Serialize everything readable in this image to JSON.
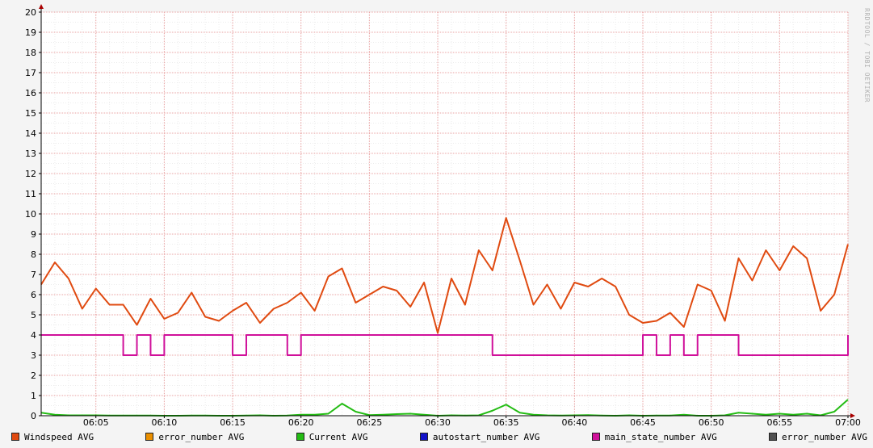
{
  "chart_data": {
    "type": "line",
    "title": "",
    "xlabel": "",
    "ylabel": "",
    "ylim": [
      0,
      20
    ],
    "yticks": [
      0,
      1,
      2,
      3,
      4,
      5,
      6,
      7,
      8,
      9,
      10,
      11,
      12,
      13,
      14,
      15,
      16,
      17,
      18,
      19,
      20
    ],
    "xlim": [
      "06:01",
      "07:00"
    ],
    "xticks": [
      "06:05",
      "06:10",
      "06:15",
      "06:20",
      "06:25",
      "06:30",
      "06:35",
      "06:40",
      "06:45",
      "06:50",
      "06:55",
      "07:00"
    ],
    "grid": true,
    "legend_position": "bottom",
    "watermark": "RRDTOOL / TOBI OETIKER",
    "series": [
      {
        "name": "Windspeed AVG",
        "color": "#e04a10",
        "x": [
          "06:01",
          "06:02",
          "06:03",
          "06:04",
          "06:05",
          "06:06",
          "06:07",
          "06:08",
          "06:09",
          "06:10",
          "06:11",
          "06:12",
          "06:13",
          "06:14",
          "06:15",
          "06:16",
          "06:17",
          "06:18",
          "06:19",
          "06:20",
          "06:21",
          "06:22",
          "06:23",
          "06:24",
          "06:25",
          "06:26",
          "06:27",
          "06:28",
          "06:29",
          "06:30",
          "06:31",
          "06:32",
          "06:33",
          "06:34",
          "06:35",
          "06:36",
          "06:37",
          "06:38",
          "06:39",
          "06:40",
          "06:41",
          "06:42",
          "06:43",
          "06:44",
          "06:45",
          "06:46",
          "06:47",
          "06:48",
          "06:49",
          "06:50",
          "06:51",
          "06:52",
          "06:53",
          "06:54",
          "06:55",
          "06:56",
          "06:57",
          "06:58",
          "06:59",
          "07:00"
        ],
        "values": [
          6.5,
          7.6,
          6.8,
          5.3,
          6.3,
          5.5,
          5.5,
          4.5,
          5.8,
          4.8,
          5.1,
          6.1,
          4.9,
          4.7,
          5.2,
          5.6,
          4.6,
          5.3,
          5.6,
          6.1,
          5.2,
          6.9,
          7.3,
          5.6,
          6.0,
          6.4,
          6.2,
          5.4,
          6.6,
          4.1,
          6.8,
          5.5,
          8.2,
          7.2,
          9.8,
          7.7,
          5.5,
          6.5,
          5.3,
          6.6,
          6.4,
          6.8,
          6.4,
          5.0,
          4.6,
          4.7,
          5.1,
          4.4,
          6.5,
          6.2,
          4.7,
          7.8,
          6.7,
          8.2,
          7.2,
          8.4,
          7.8,
          5.2,
          6.0,
          8.5
        ]
      },
      {
        "name": "error_number AVG",
        "color": "#ea8f00",
        "x": [],
        "values": []
      },
      {
        "name": "Current AVG",
        "color": "#24bc14",
        "x": [
          "06:01",
          "06:02",
          "06:03",
          "06:04",
          "06:05",
          "06:06",
          "06:07",
          "06:08",
          "06:09",
          "06:10",
          "06:11",
          "06:12",
          "06:13",
          "06:14",
          "06:15",
          "06:16",
          "06:17",
          "06:18",
          "06:19",
          "06:20",
          "06:21",
          "06:22",
          "06:23",
          "06:24",
          "06:25",
          "06:26",
          "06:27",
          "06:28",
          "06:29",
          "06:30",
          "06:31",
          "06:32",
          "06:33",
          "06:34",
          "06:35",
          "06:36",
          "06:37",
          "06:38",
          "06:39",
          "06:40",
          "06:41",
          "06:42",
          "06:43",
          "06:44",
          "06:45",
          "06:46",
          "06:47",
          "06:48",
          "06:49",
          "06:50",
          "06:51",
          "06:52",
          "06:53",
          "06:54",
          "06:55",
          "06:56",
          "06:57",
          "06:58",
          "06:59",
          "07:00"
        ],
        "values": [
          0.15,
          0.05,
          0.02,
          0.02,
          0.02,
          0.01,
          0.01,
          0.01,
          0.01,
          0.0,
          0.0,
          0.01,
          0.01,
          0.0,
          0.0,
          0.01,
          0.02,
          0.0,
          0.01,
          0.05,
          0.05,
          0.1,
          0.6,
          0.2,
          0.03,
          0.05,
          0.08,
          0.1,
          0.05,
          0.0,
          0.02,
          0.01,
          0.02,
          0.25,
          0.55,
          0.15,
          0.05,
          0.02,
          0.01,
          0.02,
          0.03,
          0.01,
          0.0,
          0.02,
          0.0,
          0.01,
          0.01,
          0.05,
          0.0,
          0.0,
          0.02,
          0.15,
          0.1,
          0.05,
          0.1,
          0.05,
          0.1,
          0.02,
          0.2,
          0.8
        ]
      },
      {
        "name": "autostart_number AVG",
        "color": "#1010c8",
        "x": [],
        "values": []
      },
      {
        "name": "main_state_number AVG",
        "color": "#d0109a",
        "x": [
          "06:01",
          "06:06",
          "06:07",
          "06:08",
          "06:09",
          "06:10",
          "06:14",
          "06:15",
          "06:16",
          "06:18",
          "06:19",
          "06:20",
          "06:33",
          "06:34",
          "06:45",
          "06:46",
          "06:47",
          "06:48",
          "06:49",
          "06:51",
          "06:52",
          "07:00"
        ],
        "values": [
          4,
          4,
          3,
          4,
          3,
          4,
          4,
          3,
          4,
          4,
          3,
          4,
          4,
          3,
          4,
          3,
          4,
          3,
          4,
          4,
          3,
          4
        ]
      },
      {
        "name": "error_number AVG",
        "color": "#505050",
        "x": [],
        "values": []
      }
    ]
  }
}
